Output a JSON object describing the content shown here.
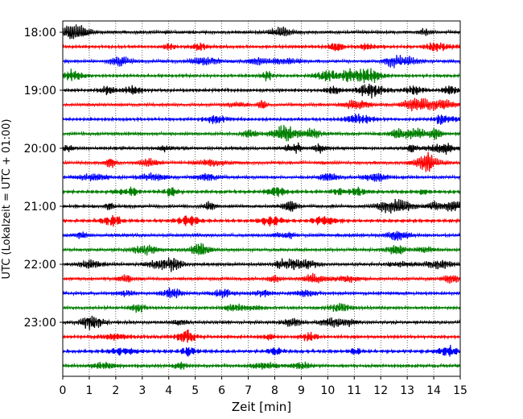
{
  "chart_data": {
    "type": "line",
    "title": "",
    "xlabel": "Zeit  [min]",
    "ylabel": "UTC (Lokalzeit = UTC + 01:00)",
    "xlim": [
      0,
      15
    ],
    "x_ticks": [
      0,
      1,
      2,
      3,
      4,
      5,
      6,
      7,
      8,
      9,
      10,
      11,
      12,
      13,
      14,
      15
    ],
    "y_time_ticks": [
      "18:00",
      "19:00",
      "20:00",
      "21:00",
      "22:00",
      "23:00"
    ],
    "trace_interval_min": 15,
    "trace_start": "18:00",
    "trace_count": 24,
    "trace_colors": [
      "#000000",
      "#ff0000",
      "#0000ff",
      "#007f00"
    ],
    "x_grid": "dotted vertical at each minute",
    "legend": "none"
  }
}
